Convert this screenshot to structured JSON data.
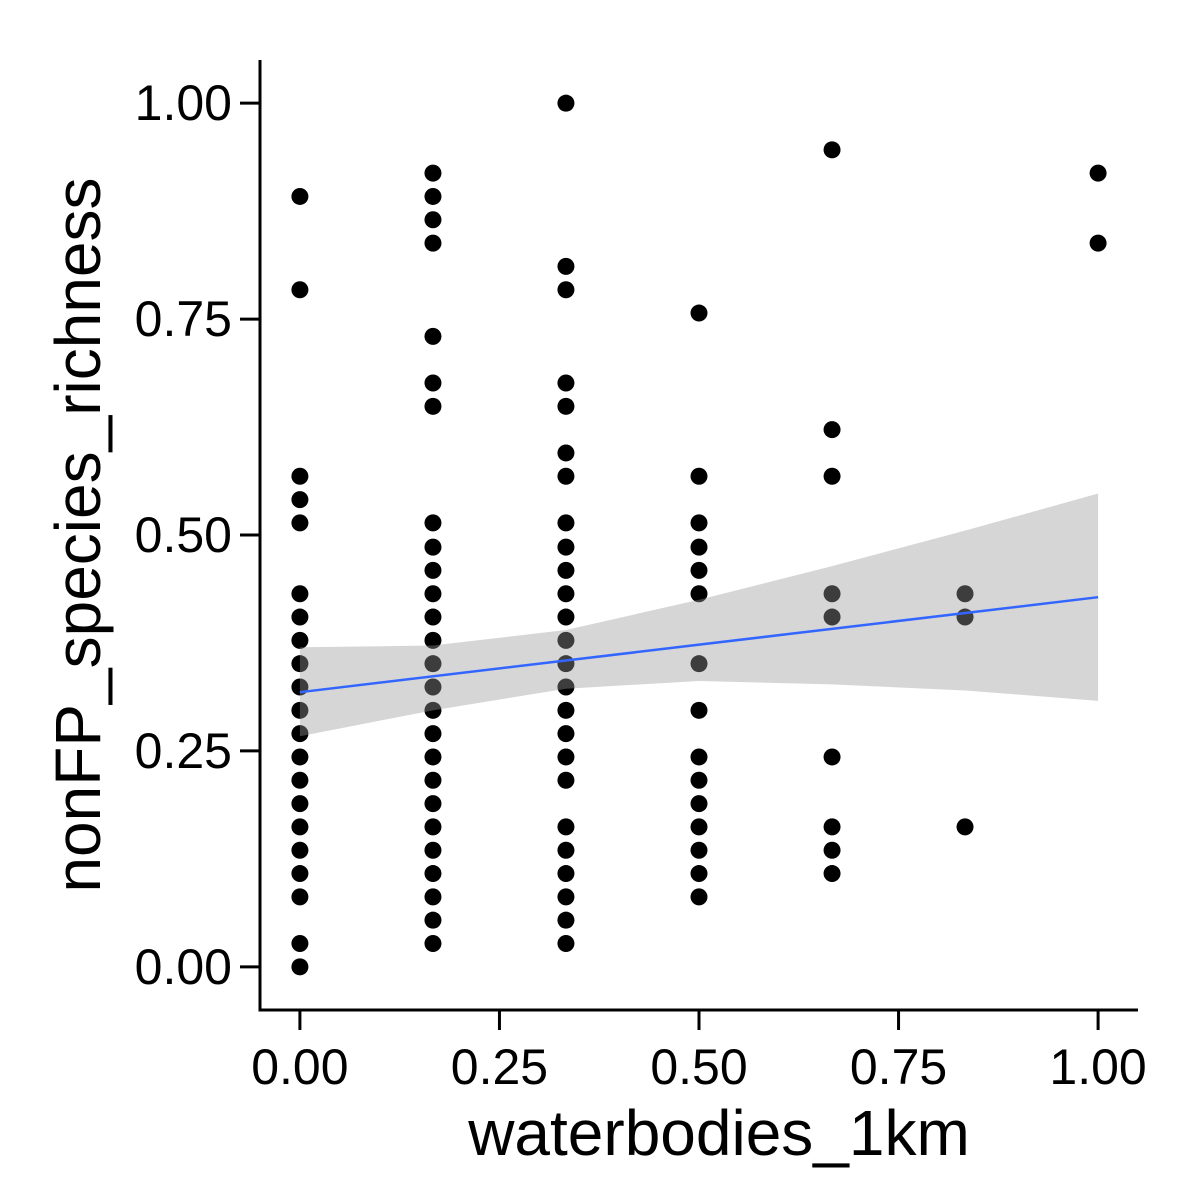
{
  "chart_data": {
    "type": "scatter",
    "title": "",
    "xlabel": "waterbodies_1km",
    "ylabel": "nonFP_species_richness",
    "xlim": [
      -0.05,
      1.05
    ],
    "ylim": [
      -0.05,
      1.05
    ],
    "x_ticks": [
      0,
      0.25,
      0.5,
      0.75,
      1.0
    ],
    "x_tick_labels": [
      "0.00",
      "0.25",
      "0.50",
      "0.75",
      "1.00"
    ],
    "y_ticks": [
      0,
      0.25,
      0.5,
      0.75,
      1.0
    ],
    "y_tick_labels": [
      "0.00",
      "0.25",
      "0.50",
      "0.75",
      "1.00"
    ],
    "grid": false,
    "point_color": "#000000",
    "points": [
      {
        "x": 0,
        "y": 0.892
      },
      {
        "x": 0,
        "y": 0.784
      },
      {
        "x": 0,
        "y": 0.568
      },
      {
        "x": 0,
        "y": 0.541
      },
      {
        "x": 0,
        "y": 0.514
      },
      {
        "x": 0,
        "y": 0.432
      },
      {
        "x": 0,
        "y": 0.405
      },
      {
        "x": 0,
        "y": 0.378
      },
      {
        "x": 0,
        "y": 0.351
      },
      {
        "x": 0,
        "y": 0.324
      },
      {
        "x": 0,
        "y": 0.297
      },
      {
        "x": 0,
        "y": 0.27
      },
      {
        "x": 0,
        "y": 0.243
      },
      {
        "x": 0,
        "y": 0.216
      },
      {
        "x": 0,
        "y": 0.189
      },
      {
        "x": 0,
        "y": 0.162
      },
      {
        "x": 0,
        "y": 0.135
      },
      {
        "x": 0,
        "y": 0.108
      },
      {
        "x": 0,
        "y": 0.081
      },
      {
        "x": 0,
        "y": 0.027
      },
      {
        "x": 0,
        "y": 0.0
      },
      {
        "x": 0.1667,
        "y": 0.919
      },
      {
        "x": 0.1667,
        "y": 0.892
      },
      {
        "x": 0.1667,
        "y": 0.865
      },
      {
        "x": 0.1667,
        "y": 0.838
      },
      {
        "x": 0.1667,
        "y": 0.73
      },
      {
        "x": 0.1667,
        "y": 0.676
      },
      {
        "x": 0.1667,
        "y": 0.649
      },
      {
        "x": 0.1667,
        "y": 0.514
      },
      {
        "x": 0.1667,
        "y": 0.486
      },
      {
        "x": 0.1667,
        "y": 0.459
      },
      {
        "x": 0.1667,
        "y": 0.432
      },
      {
        "x": 0.1667,
        "y": 0.405
      },
      {
        "x": 0.1667,
        "y": 0.378
      },
      {
        "x": 0.1667,
        "y": 0.351
      },
      {
        "x": 0.1667,
        "y": 0.324
      },
      {
        "x": 0.1667,
        "y": 0.297
      },
      {
        "x": 0.1667,
        "y": 0.27
      },
      {
        "x": 0.1667,
        "y": 0.243
      },
      {
        "x": 0.1667,
        "y": 0.216
      },
      {
        "x": 0.1667,
        "y": 0.189
      },
      {
        "x": 0.1667,
        "y": 0.162
      },
      {
        "x": 0.1667,
        "y": 0.135
      },
      {
        "x": 0.1667,
        "y": 0.108
      },
      {
        "x": 0.1667,
        "y": 0.081
      },
      {
        "x": 0.1667,
        "y": 0.054
      },
      {
        "x": 0.1667,
        "y": 0.027
      },
      {
        "x": 0.3333,
        "y": 1.0
      },
      {
        "x": 0.3333,
        "y": 0.811
      },
      {
        "x": 0.3333,
        "y": 0.784
      },
      {
        "x": 0.3333,
        "y": 0.676
      },
      {
        "x": 0.3333,
        "y": 0.649
      },
      {
        "x": 0.3333,
        "y": 0.595
      },
      {
        "x": 0.3333,
        "y": 0.568
      },
      {
        "x": 0.3333,
        "y": 0.514
      },
      {
        "x": 0.3333,
        "y": 0.486
      },
      {
        "x": 0.3333,
        "y": 0.459
      },
      {
        "x": 0.3333,
        "y": 0.432
      },
      {
        "x": 0.3333,
        "y": 0.405
      },
      {
        "x": 0.3333,
        "y": 0.378
      },
      {
        "x": 0.3333,
        "y": 0.351
      },
      {
        "x": 0.3333,
        "y": 0.324
      },
      {
        "x": 0.3333,
        "y": 0.297
      },
      {
        "x": 0.3333,
        "y": 0.27
      },
      {
        "x": 0.3333,
        "y": 0.243
      },
      {
        "x": 0.3333,
        "y": 0.216
      },
      {
        "x": 0.3333,
        "y": 0.162
      },
      {
        "x": 0.3333,
        "y": 0.135
      },
      {
        "x": 0.3333,
        "y": 0.108
      },
      {
        "x": 0.3333,
        "y": 0.081
      },
      {
        "x": 0.3333,
        "y": 0.054
      },
      {
        "x": 0.3333,
        "y": 0.027
      },
      {
        "x": 0.5,
        "y": 0.757
      },
      {
        "x": 0.5,
        "y": 0.568
      },
      {
        "x": 0.5,
        "y": 0.514
      },
      {
        "x": 0.5,
        "y": 0.486
      },
      {
        "x": 0.5,
        "y": 0.459
      },
      {
        "x": 0.5,
        "y": 0.432
      },
      {
        "x": 0.5,
        "y": 0.351
      },
      {
        "x": 0.5,
        "y": 0.297
      },
      {
        "x": 0.5,
        "y": 0.243
      },
      {
        "x": 0.5,
        "y": 0.216
      },
      {
        "x": 0.5,
        "y": 0.189
      },
      {
        "x": 0.5,
        "y": 0.162
      },
      {
        "x": 0.5,
        "y": 0.135
      },
      {
        "x": 0.5,
        "y": 0.108
      },
      {
        "x": 0.5,
        "y": 0.081
      },
      {
        "x": 0.6667,
        "y": 0.946
      },
      {
        "x": 0.6667,
        "y": 0.622
      },
      {
        "x": 0.6667,
        "y": 0.568
      },
      {
        "x": 0.6667,
        "y": 0.432
      },
      {
        "x": 0.6667,
        "y": 0.405
      },
      {
        "x": 0.6667,
        "y": 0.243
      },
      {
        "x": 0.6667,
        "y": 0.162
      },
      {
        "x": 0.6667,
        "y": 0.135
      },
      {
        "x": 0.6667,
        "y": 0.108
      },
      {
        "x": 0.8333,
        "y": 0.432
      },
      {
        "x": 0.8333,
        "y": 0.405
      },
      {
        "x": 0.8333,
        "y": 0.162
      },
      {
        "x": 1.0,
        "y": 0.919
      },
      {
        "x": 1.0,
        "y": 0.838
      }
    ],
    "smooth": {
      "method": "linear",
      "color": "#3366ff",
      "band_color": "#999999",
      "line": [
        {
          "x": 0,
          "y": 0.318
        },
        {
          "x": 1.0,
          "y": 0.428
        }
      ],
      "ci": [
        {
          "x": 0.0,
          "lower": 0.267,
          "upper": 0.37
        },
        {
          "x": 0.1667,
          "lower": 0.297,
          "upper": 0.372
        },
        {
          "x": 0.3333,
          "lower": 0.322,
          "upper": 0.39
        },
        {
          "x": 0.5,
          "lower": 0.331,
          "upper": 0.425
        },
        {
          "x": 0.6667,
          "lower": 0.327,
          "upper": 0.464
        },
        {
          "x": 0.8333,
          "lower": 0.32,
          "upper": 0.505
        },
        {
          "x": 1.0,
          "lower": 0.308,
          "upper": 0.548
        }
      ]
    }
  }
}
